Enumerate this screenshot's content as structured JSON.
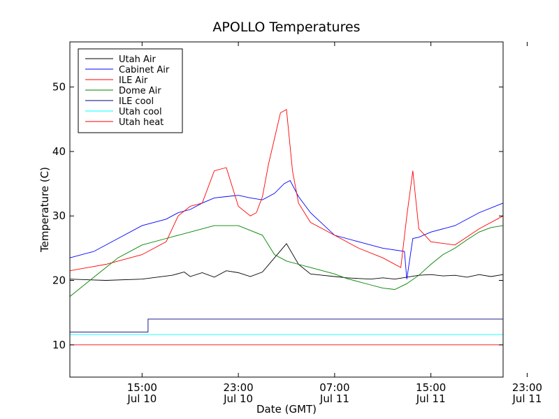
{
  "chart_data": {
    "type": "line",
    "title": "APOLLO Temperatures",
    "xlabel": "Date (GMT)",
    "ylabel": "Temperature (C)",
    "ylim": [
      5,
      57
    ],
    "xlim": [
      0,
      36
    ],
    "x_unit": "hours since Jul 10 09:00 GMT",
    "grid": false,
    "legend_position": "top-left",
    "y_ticks": [
      {
        "value": 10,
        "label": "10"
      },
      {
        "value": 20,
        "label": "20"
      },
      {
        "value": 30,
        "label": "30"
      },
      {
        "value": 40,
        "label": "40"
      },
      {
        "value": 50,
        "label": "50"
      }
    ],
    "x_ticks": [
      {
        "value": 6,
        "time": "15:00",
        "date": "Jul 10"
      },
      {
        "value": 14,
        "time": "23:00",
        "date": "Jul 10"
      },
      {
        "value": 22,
        "time": "07:00",
        "date": "Jul 11"
      },
      {
        "value": 30,
        "time": "15:00",
        "date": "Jul 11"
      },
      {
        "value": 38,
        "time": "23:00",
        "date": "Jul 11"
      }
    ],
    "series": [
      {
        "name": "Utah Air",
        "color": "#000000",
        "x": [
          0,
          3,
          6,
          8.5,
          9.5,
          10,
          11,
          12,
          13,
          14,
          15,
          16,
          17,
          18,
          19,
          20,
          21,
          22,
          23,
          24,
          25,
          26,
          27,
          28,
          29,
          30,
          31,
          32,
          33,
          34,
          35,
          36
        ],
        "y": [
          20.2,
          20,
          20.2,
          20.8,
          21.3,
          20.6,
          21.2,
          20.5,
          21.5,
          21.2,
          20.6,
          21.3,
          23.5,
          25.7,
          22.5,
          21.0,
          20.8,
          20.6,
          20.4,
          20.3,
          20.2,
          20.4,
          20.2,
          20.5,
          20.8,
          20.9,
          20.7,
          20.8,
          20.5,
          20.9,
          20.6,
          20.9
        ]
      },
      {
        "name": "Cabinet Air",
        "color": "#0000ff",
        "x": [
          0,
          2,
          4,
          6,
          8,
          9,
          10,
          11,
          12,
          13,
          14,
          15,
          16,
          17,
          17.8,
          18.3,
          19,
          20,
          22,
          24,
          26,
          27.8,
          28,
          28.5,
          29,
          30,
          32,
          34,
          36
        ],
        "y": [
          23.5,
          24.5,
          26.5,
          28.5,
          29.5,
          30.5,
          31,
          32,
          32.8,
          33,
          33.2,
          32.8,
          32.5,
          33.5,
          35,
          35.5,
          33,
          30.5,
          27,
          26,
          25,
          24.5,
          20.2,
          26.5,
          26.7,
          27.5,
          28.5,
          30.5,
          32
        ]
      },
      {
        "name": "ILE Air",
        "color": "#ff0000",
        "x": [
          0,
          3,
          6,
          8,
          9,
          10,
          11,
          12,
          13,
          14,
          15,
          15.5,
          16,
          16.5,
          17,
          17.5,
          18,
          18.5,
          19,
          20,
          22,
          24,
          26,
          27.5,
          28,
          28.5,
          29,
          30,
          32,
          34,
          36
        ],
        "y": [
          21.5,
          22.5,
          24,
          26,
          30,
          31.5,
          32,
          37,
          37.5,
          31.5,
          30,
          30.5,
          33,
          38,
          42,
          46,
          46.5,
          37,
          32,
          29,
          27,
          25,
          23.5,
          22,
          30,
          37,
          28,
          26,
          25.5,
          28,
          30
        ]
      },
      {
        "name": "Dome Air",
        "color": "#008000",
        "x": [
          0,
          2,
          4,
          6,
          8,
          10,
          12,
          14,
          16,
          17,
          18,
          19,
          20,
          21,
          22,
          23,
          24,
          25,
          26,
          27,
          28,
          29,
          30,
          31,
          32,
          33,
          34,
          35,
          36
        ],
        "y": [
          17.5,
          20.5,
          23.5,
          25.5,
          26.5,
          27.5,
          28.5,
          28.5,
          27,
          24,
          23,
          22.5,
          22,
          21.5,
          21,
          20.3,
          19.8,
          19.3,
          18.8,
          18.6,
          19.5,
          20.8,
          22.5,
          24,
          25,
          26.3,
          27.5,
          28.2,
          28.5
        ]
      },
      {
        "name": "ILE cool",
        "color": "#000080",
        "x": [
          0,
          6.5,
          6.5,
          36
        ],
        "y": [
          12,
          12,
          14,
          14
        ]
      },
      {
        "name": "Utah cool",
        "color": "#00ffff",
        "x": [
          0,
          36
        ],
        "y": [
          11.6,
          11.6
        ]
      },
      {
        "name": "Utah heat",
        "color": "#ff0000",
        "x": [
          0,
          36
        ],
        "y": [
          10,
          10
        ]
      }
    ]
  }
}
